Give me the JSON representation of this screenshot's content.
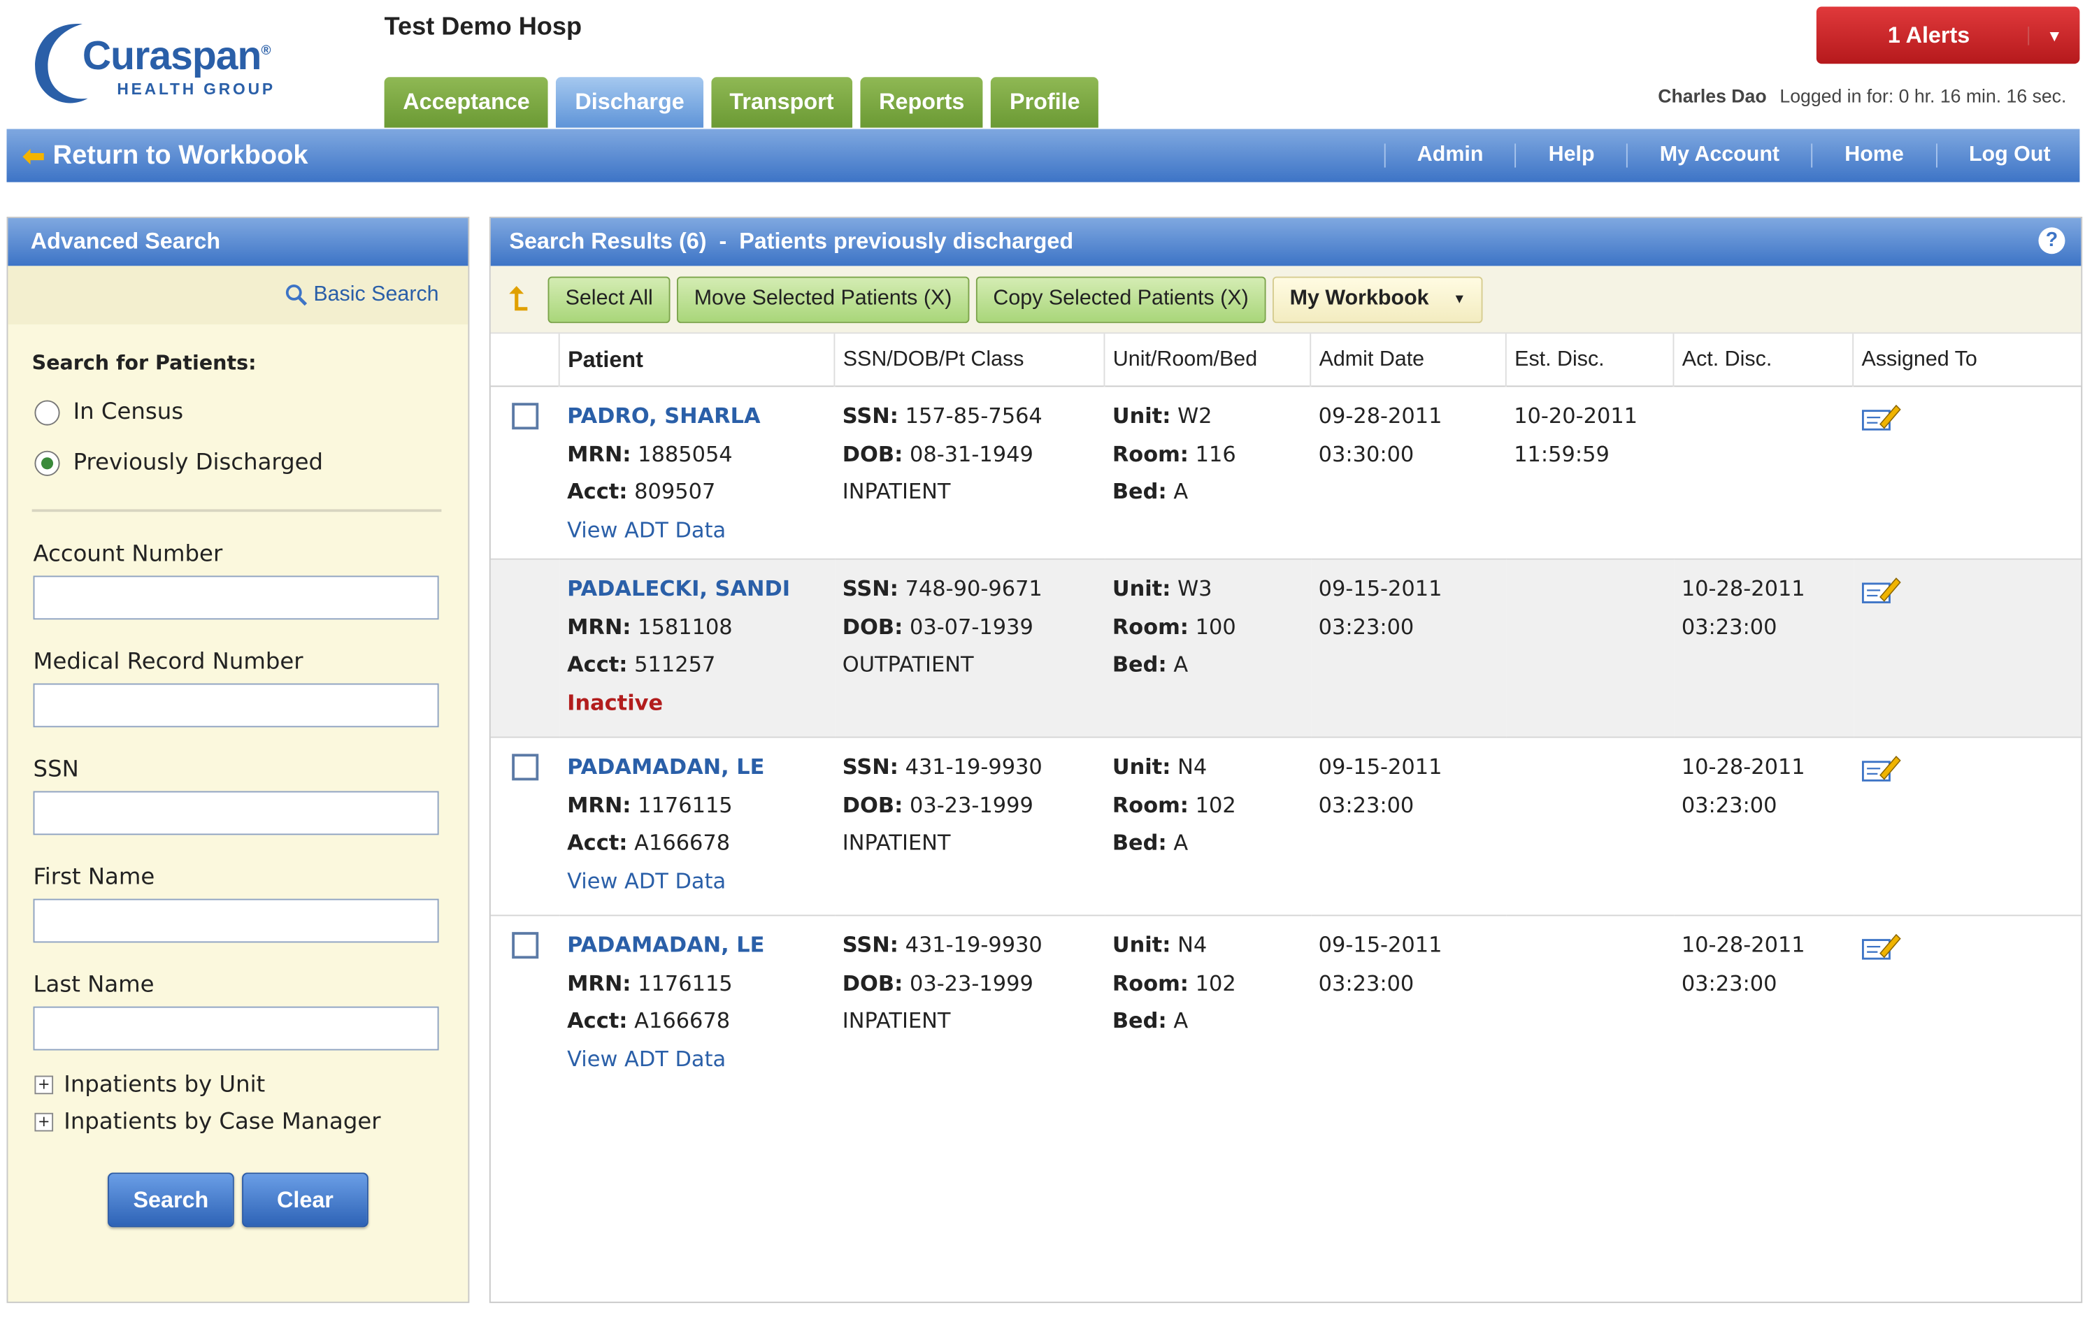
{
  "header": {
    "logo_name": "Curaspan",
    "logo_sub": "HEALTH GROUP",
    "hospital": "Test Demo Hosp",
    "tabs": [
      {
        "label": "Acceptance"
      },
      {
        "label": "Discharge"
      },
      {
        "label": "Transport"
      },
      {
        "label": "Reports"
      },
      {
        "label": "Profile"
      }
    ],
    "active_tab": "Discharge",
    "alerts_label": "1 Alerts",
    "user_name": "Charles Dao",
    "logged_in": "Logged in for: 0 hr. 16 min. 16 sec.",
    "return_label": "Return to Workbook",
    "nav": [
      "Admin",
      "Help",
      "My Account",
      "Home",
      "Log Out"
    ]
  },
  "left_panel": {
    "title": "Advanced Search",
    "basic_search": "Basic Search",
    "search_for": "Search for Patients:",
    "radios": [
      {
        "label": "In Census",
        "checked": false
      },
      {
        "label": "Previously Discharged",
        "checked": true
      }
    ],
    "fields": [
      {
        "label": "Account Number",
        "value": ""
      },
      {
        "label": "Medical Record Number",
        "value": ""
      },
      {
        "label": "SSN",
        "value": ""
      },
      {
        "label": "First Name",
        "value": ""
      },
      {
        "label": "Last Name",
        "value": ""
      }
    ],
    "tree": [
      "Inpatients by Unit",
      "Inpatients by Case Manager"
    ],
    "search_btn": "Search",
    "clear_btn": "Clear"
  },
  "results": {
    "title": "Search Results (6)  -  Patients previously discharged",
    "help": "?",
    "select_all": "Select All",
    "move_selected": "Move Selected Patients (X)",
    "copy_selected": "Copy Selected Patients (X)",
    "workbook": "My Workbook",
    "columns": [
      "Patient",
      "SSN/DOB/Pt Class",
      "Unit/Room/Bed",
      "Admit Date",
      "Est. Disc.",
      "Act. Disc.",
      "Assigned To"
    ],
    "labels": {
      "mrn": "MRN:",
      "acct": "Acct:",
      "ssn": "SSN:",
      "dob": "DOB:",
      "unit": "Unit:",
      "room": "Room:",
      "bed": "Bed:",
      "view_adt": "View ADT Data"
    },
    "rows": [
      {
        "checkbox": true,
        "name": "PADRO, SHARLA",
        "mrn": "1885054",
        "acct": "809507",
        "extra": "View ADT Data",
        "ssn": "157-85-7564",
        "dob": "08-31-1949",
        "ptclass": "INPATIENT",
        "unit": "W2",
        "room": "116",
        "bed": "A",
        "admit_date": "09-28-2011",
        "admit_time": "03:30:00",
        "est_date": "10-20-2011",
        "est_time": "11:59:59",
        "act_date": "",
        "act_time": ""
      },
      {
        "checkbox": false,
        "name": "PADALECKI, SANDI",
        "mrn": "1581108",
        "acct": "511257",
        "extra": "Inactive",
        "ssn": "748-90-9671",
        "dob": "03-07-1939",
        "ptclass": "OUTPATIENT",
        "unit": "W3",
        "room": "100",
        "bed": "A",
        "admit_date": "09-15-2011",
        "admit_time": "03:23:00",
        "est_date": "",
        "est_time": "",
        "act_date": "10-28-2011",
        "act_time": "03:23:00"
      },
      {
        "checkbox": true,
        "name": "PADAMADAN, LE",
        "mrn": "1176115",
        "acct": "A166678",
        "extra": "View ADT Data",
        "ssn": "431-19-9930",
        "dob": "03-23-1999",
        "ptclass": "INPATIENT",
        "unit": "N4",
        "room": "102",
        "bed": "A",
        "admit_date": "09-15-2011",
        "admit_time": "03:23:00",
        "est_date": "",
        "est_time": "",
        "act_date": "10-28-2011",
        "act_time": "03:23:00"
      },
      {
        "checkbox": true,
        "name": "PADAMADAN, LE",
        "mrn": "1176115",
        "acct": "A166678",
        "extra": "View ADT Data",
        "ssn": "431-19-9930",
        "dob": "03-23-1999",
        "ptclass": "INPATIENT",
        "unit": "N4",
        "room": "102",
        "bed": "A",
        "admit_date": "09-15-2011",
        "admit_time": "03:23:00",
        "est_date": "",
        "est_time": "",
        "act_date": "10-28-2011",
        "act_time": "03:23:00"
      }
    ]
  },
  "icons": {
    "return": "arrow-left-icon",
    "basic_search": "magnifier-icon",
    "assign": "edit-pencil-icon",
    "up": "arrow-up-back-icon",
    "dropdown": "chevron-down-icon"
  },
  "colors": {
    "accent_blue": "#3d74c6",
    "tab_green": "#6b9a34",
    "alert_red": "#c62325",
    "inactive_red": "#b21d1d"
  }
}
